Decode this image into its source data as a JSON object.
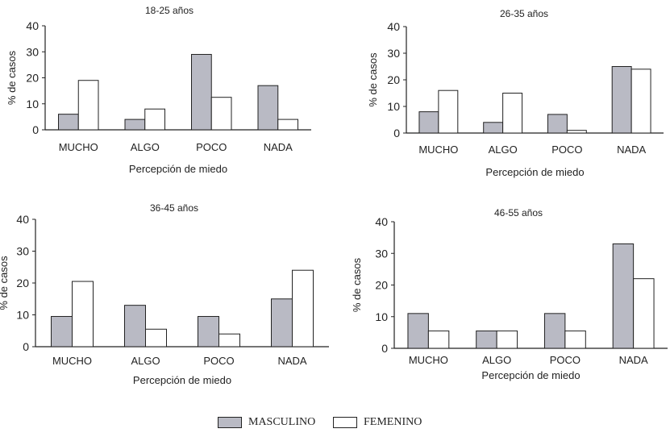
{
  "colors": {
    "masculino": "#b9bac4",
    "femenino": "#ffffff",
    "stroke": "#222222"
  },
  "legend": [
    {
      "label": "MASCULINO",
      "swatch": "masculino"
    },
    {
      "label": "FEMENINO",
      "swatch": "femenino"
    }
  ],
  "chart_data": [
    {
      "type": "bar",
      "title": "18-25 años",
      "xlabel": "Percepción de miedo",
      "ylabel": "% de casos",
      "ylim": [
        0,
        40
      ],
      "yticks": [
        0,
        10,
        20,
        30,
        40
      ],
      "categories": [
        "MUCHO",
        "ALGO",
        "POCO",
        "NADA"
      ],
      "series": [
        {
          "name": "MASCULINO",
          "values": [
            6,
            4,
            29,
            17
          ]
        },
        {
          "name": "FEMENINO",
          "values": [
            19,
            8,
            12.5,
            4
          ]
        }
      ]
    },
    {
      "type": "bar",
      "title": "26-35 años",
      "xlabel": "Percepción de miedo",
      "ylabel": "% de casos",
      "ylim": [
        0,
        40
      ],
      "yticks": [
        0,
        10,
        20,
        30,
        40
      ],
      "categories": [
        "MUCHO",
        "ALGO",
        "POCO",
        "NADA"
      ],
      "series": [
        {
          "name": "MASCULINO",
          "values": [
            8,
            4,
            7,
            25
          ]
        },
        {
          "name": "FEMENINO",
          "values": [
            16,
            15,
            1,
            24
          ]
        }
      ]
    },
    {
      "type": "bar",
      "title": "36-45 años",
      "xlabel": "Percepción de miedo",
      "ylabel": "% de casos",
      "ylim": [
        0,
        40
      ],
      "yticks": [
        0,
        10,
        20,
        30,
        40
      ],
      "categories": [
        "MUCHO",
        "ALGO",
        "POCO",
        "NADA"
      ],
      "series": [
        {
          "name": "MASCULINO",
          "values": [
            9.5,
            13,
            9.5,
            15
          ]
        },
        {
          "name": "FEMENINO",
          "values": [
            20.5,
            5.5,
            4,
            24
          ]
        }
      ]
    },
    {
      "type": "bar",
      "title": "46-55 años",
      "xlabel": "Percepción de miedo",
      "ylabel": "% de casos",
      "ylim": [
        0,
        40
      ],
      "yticks": [
        0,
        10,
        20,
        30,
        40
      ],
      "categories": [
        "MUCHO",
        "ALGO",
        "POCO",
        "NADA"
      ],
      "series": [
        {
          "name": "MASCULINO",
          "values": [
            11,
            5.5,
            11,
            33
          ]
        },
        {
          "name": "FEMENINO",
          "values": [
            5.5,
            5.5,
            5.5,
            22
          ]
        }
      ]
    }
  ]
}
